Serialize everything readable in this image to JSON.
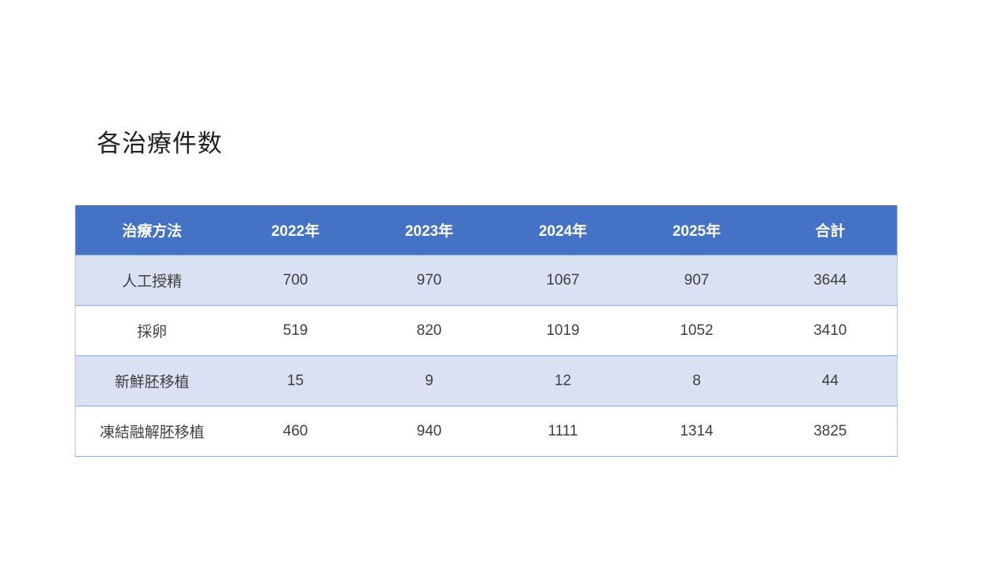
{
  "slide": {
    "title": "各治療件数"
  },
  "table": {
    "columns": [
      "治療方法",
      "2022年",
      "2023年",
      "2024年",
      "2025年",
      "合計"
    ],
    "rows": [
      {
        "method": "人工授精",
        "values": [
          "700",
          "970",
          "1067",
          "907",
          "3644"
        ]
      },
      {
        "method": "採卵",
        "values": [
          "519",
          "820",
          "1019",
          "1052",
          "3410"
        ]
      },
      {
        "method": "新鮮胚移植",
        "values": [
          "15",
          "9",
          "12",
          "8",
          "44"
        ]
      },
      {
        "method": "凍結融解胚移植",
        "values": [
          "460",
          "940",
          "1111",
          "1314",
          "3825"
        ]
      }
    ]
  },
  "colors": {
    "header_bg": "#4472C4",
    "header_text": "#FFFFFF",
    "band_bg": "#D9E1F2",
    "row_border": "#8FAADC",
    "outer_border": "#B4C7E7",
    "body_text": "#3F3F3F",
    "title_text": "#1F1F1F"
  }
}
